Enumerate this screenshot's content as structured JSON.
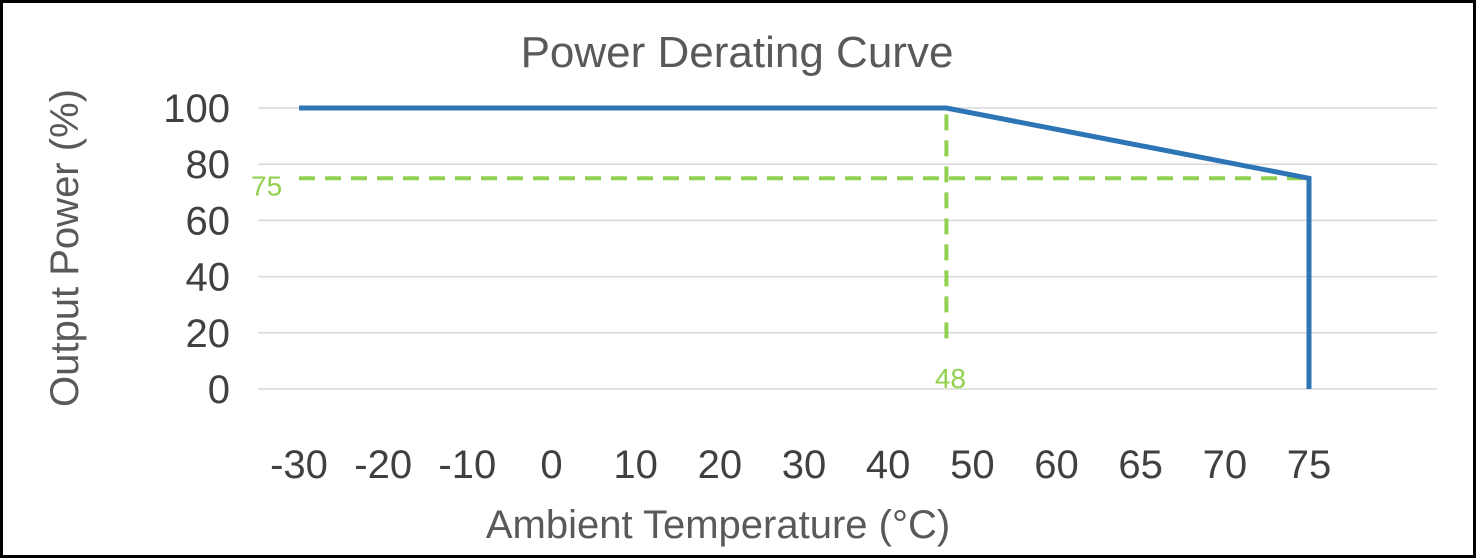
{
  "chart_data": {
    "type": "line",
    "title": "Power Derating Curve",
    "xlabel": "Ambient Temperature (°C)",
    "ylabel": "Output Power (%)",
    "categories": [
      "-30",
      "-20",
      "-10",
      "0",
      "10",
      "20",
      "30",
      "40",
      "50",
      "60",
      "65",
      "70",
      "75"
    ],
    "ylim": [
      0,
      100
    ],
    "yticks": [
      0,
      20,
      40,
      60,
      80,
      100
    ],
    "grid": "horizontal",
    "series": [
      {
        "x": [
          -30,
          48,
          75,
          75
        ],
        "y": [
          100,
          100,
          75,
          0
        ],
        "color": "#2e75b6"
      }
    ],
    "annotations": [
      {
        "type": "hline",
        "y": 75,
        "x_from": -30,
        "x_to": 75,
        "label": "75",
        "style": "dashed",
        "color": "#92d050"
      },
      {
        "type": "vline",
        "x": 48,
        "y_from": 18,
        "y_to": 100,
        "label": "48",
        "style": "dashed",
        "color": "#92d050"
      }
    ]
  }
}
